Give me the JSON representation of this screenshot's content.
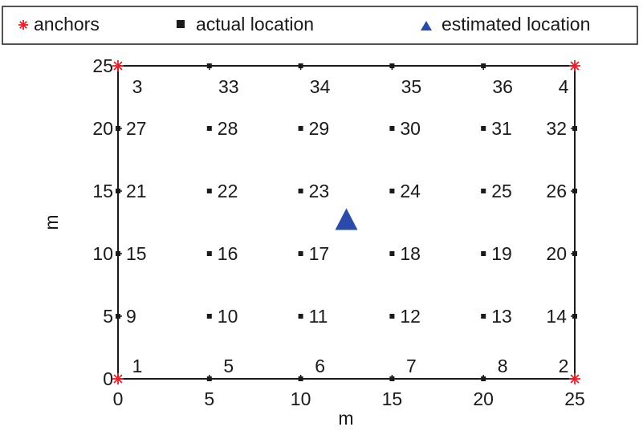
{
  "chart_data": {
    "type": "scatter",
    "title": "",
    "xlabel": "m",
    "ylabel": "m",
    "xlim": [
      0,
      25
    ],
    "ylim": [
      0,
      25
    ],
    "xticks": [
      0,
      5,
      10,
      15,
      20,
      25
    ],
    "yticks": [
      0,
      5,
      10,
      15,
      20,
      25
    ],
    "grid": false,
    "legend_position": "top",
    "legend": [
      {
        "label": "anchors",
        "marker": "asterisk",
        "color": "#e8202a"
      },
      {
        "label": "actual location",
        "marker": "square",
        "color": "#1a1a1a"
      },
      {
        "label": "estimated location",
        "marker": "triangle",
        "color": "#2a4ba8"
      }
    ],
    "series": [
      {
        "name": "anchors",
        "points": [
          {
            "id": "1",
            "x": 0,
            "y": 0
          },
          {
            "id": "2",
            "x": 25,
            "y": 0
          },
          {
            "id": "3",
            "x": 0,
            "y": 25
          },
          {
            "id": "4",
            "x": 25,
            "y": 25
          }
        ]
      },
      {
        "name": "actual location",
        "points": [
          {
            "id": "5",
            "x": 5,
            "y": 0
          },
          {
            "id": "6",
            "x": 10,
            "y": 0
          },
          {
            "id": "7",
            "x": 15,
            "y": 0
          },
          {
            "id": "8",
            "x": 20,
            "y": 0
          },
          {
            "id": "9",
            "x": 0,
            "y": 5
          },
          {
            "id": "10",
            "x": 5,
            "y": 5
          },
          {
            "id": "11",
            "x": 10,
            "y": 5
          },
          {
            "id": "12",
            "x": 15,
            "y": 5
          },
          {
            "id": "13",
            "x": 20,
            "y": 5
          },
          {
            "id": "14",
            "x": 25,
            "y": 5
          },
          {
            "id": "15",
            "x": 0,
            "y": 10
          },
          {
            "id": "16",
            "x": 5,
            "y": 10
          },
          {
            "id": "17",
            "x": 10,
            "y": 10
          },
          {
            "id": "18",
            "x": 15,
            "y": 10
          },
          {
            "id": "19",
            "x": 20,
            "y": 10
          },
          {
            "id": "20",
            "x": 25,
            "y": 10
          },
          {
            "id": "21",
            "x": 0,
            "y": 15
          },
          {
            "id": "22",
            "x": 5,
            "y": 15
          },
          {
            "id": "23",
            "x": 10,
            "y": 15
          },
          {
            "id": "24",
            "x": 15,
            "y": 15
          },
          {
            "id": "25",
            "x": 20,
            "y": 15
          },
          {
            "id": "26",
            "x": 25,
            "y": 15
          },
          {
            "id": "27",
            "x": 0,
            "y": 20
          },
          {
            "id": "28",
            "x": 5,
            "y": 20
          },
          {
            "id": "29",
            "x": 10,
            "y": 20
          },
          {
            "id": "30",
            "x": 15,
            "y": 20
          },
          {
            "id": "31",
            "x": 20,
            "y": 20
          },
          {
            "id": "32",
            "x": 25,
            "y": 20
          },
          {
            "id": "33",
            "x": 5,
            "y": 25
          },
          {
            "id": "34",
            "x": 10,
            "y": 25
          },
          {
            "id": "35",
            "x": 15,
            "y": 25
          },
          {
            "id": "36",
            "x": 20,
            "y": 25
          }
        ]
      },
      {
        "name": "estimated location",
        "points": [
          {
            "x": 12.5,
            "y": 12.6
          }
        ]
      }
    ]
  }
}
